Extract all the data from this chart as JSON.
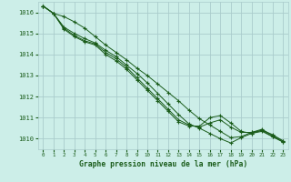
{
  "title": "Graphe pression niveau de la mer (hPa)",
  "background_color": "#cceee8",
  "grid_color": "#aacccc",
  "line_color": "#1a5c1a",
  "marker_color": "#1a5c1a",
  "xlim": [
    -0.5,
    23.5
  ],
  "ylim": [
    1009.5,
    1016.5
  ],
  "yticks": [
    1010,
    1011,
    1012,
    1013,
    1014,
    1015,
    1016
  ],
  "xticks": [
    0,
    1,
    2,
    3,
    4,
    5,
    6,
    7,
    8,
    9,
    10,
    11,
    12,
    13,
    14,
    15,
    16,
    17,
    18,
    19,
    20,
    21,
    22,
    23
  ],
  "series": [
    [
      1016.3,
      1015.95,
      1015.8,
      1015.55,
      1015.25,
      1014.85,
      1014.45,
      1014.1,
      1013.75,
      1013.35,
      1013.0,
      1012.6,
      1012.2,
      1011.8,
      1011.35,
      1010.95,
      1010.65,
      1010.35,
      1010.05,
      1010.1,
      1010.3,
      1010.4,
      1010.2,
      1009.9
    ],
    [
      1016.3,
      1015.95,
      1015.3,
      1015.0,
      1014.75,
      1014.55,
      1014.2,
      1013.9,
      1013.5,
      1013.1,
      1012.65,
      1012.15,
      1011.65,
      1011.15,
      1010.7,
      1010.5,
      1010.25,
      1010.0,
      1009.8,
      1010.05,
      1010.25,
      1010.35,
      1010.1,
      1009.85
    ],
    [
      1016.3,
      1015.95,
      1015.25,
      1014.9,
      1014.65,
      1014.5,
      1014.1,
      1013.8,
      1013.4,
      1012.9,
      1012.4,
      1011.9,
      1011.4,
      1010.9,
      1010.65,
      1010.55,
      1010.75,
      1010.9,
      1010.55,
      1010.3,
      1010.3,
      1010.45,
      1010.15,
      1009.9
    ],
    [
      1016.3,
      1015.95,
      1015.2,
      1014.85,
      1014.6,
      1014.45,
      1014.0,
      1013.7,
      1013.3,
      1012.8,
      1012.3,
      1011.8,
      1011.3,
      1010.8,
      1010.6,
      1010.6,
      1011.0,
      1011.1,
      1010.75,
      1010.35,
      1010.25,
      1010.4,
      1010.1,
      1009.85
    ]
  ]
}
